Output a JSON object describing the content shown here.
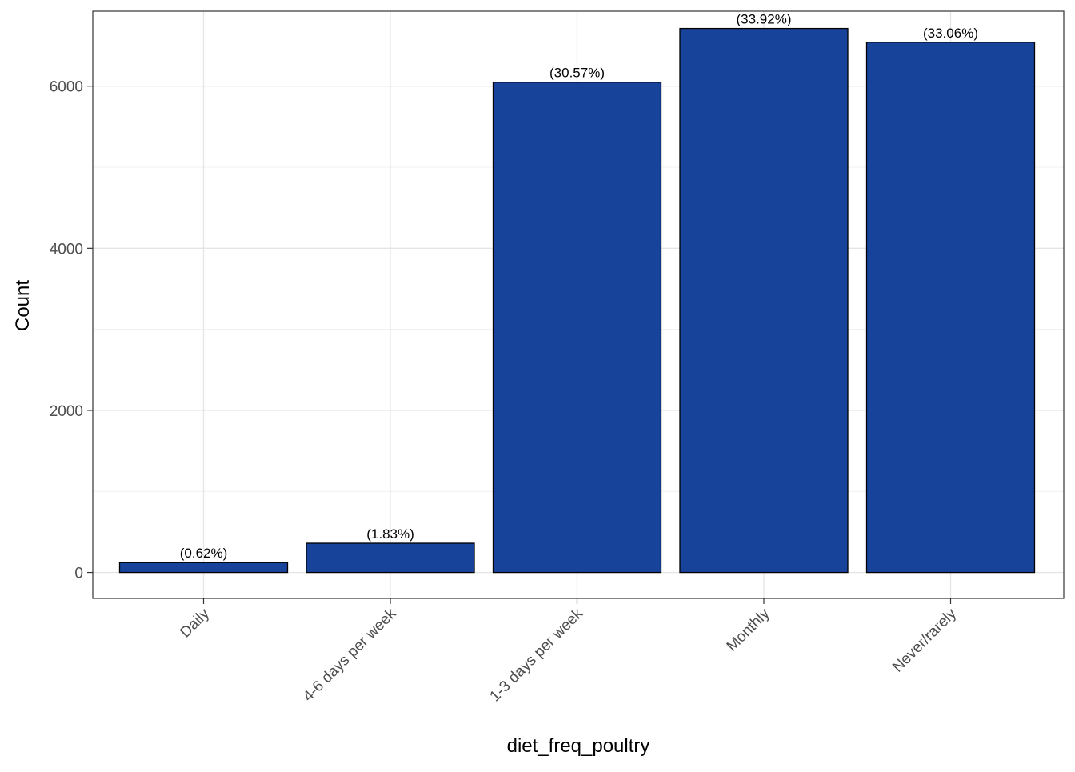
{
  "chart_data": {
    "type": "bar",
    "categories": [
      "Daily",
      "4-6 days per week",
      "1-3 days per week",
      "Monthly",
      "Never/rarely"
    ],
    "values": [
      122,
      361,
      6049,
      6712,
      6542
    ],
    "labels": [
      "(0.62%)",
      "(1.83%)",
      "(30.57%)",
      "(33.92%)",
      "(33.06%)"
    ],
    "xlabel": "diet_freq_poultry",
    "ylabel": "Count",
    "ylim": [
      -320,
      6925
    ],
    "yticks": [
      0,
      2000,
      4000,
      6000
    ],
    "ytick_labels": [
      "0",
      "2000",
      "4000",
      "6000"
    ],
    "grid": true,
    "theme": "bw",
    "bar_color": "#18439a",
    "bar_outline": "#000000",
    "tick_label_rotation_deg": -45
  }
}
